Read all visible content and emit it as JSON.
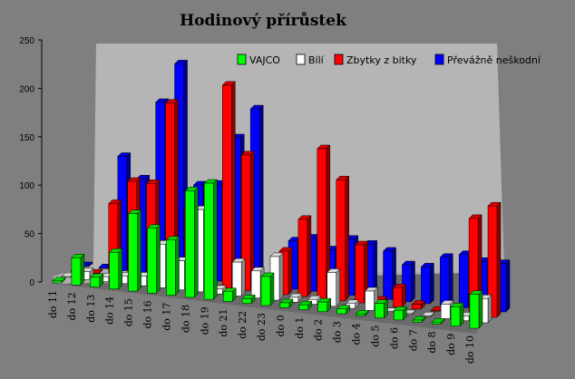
{
  "chart_data": {
    "type": "bar",
    "title": "Hodinový přírůstek",
    "xlabel": "",
    "ylabel": "",
    "ylim": [
      0,
      250
    ],
    "yticks": [
      0,
      50,
      100,
      150,
      200,
      250
    ],
    "grid": false,
    "legend": "top-right",
    "categories": [
      "do 11",
      "do 12",
      "do 13",
      "do 14",
      "do 15",
      "do 16",
      "do 17",
      "do 18",
      "do 19",
      "do 21",
      "do 22",
      "do 23",
      "do 0",
      "do 1",
      "do 2",
      "do 3",
      "do 4",
      "do 5",
      "do 6",
      "do 7",
      "do 8",
      "do 9",
      "do 10"
    ],
    "series": [
      {
        "name": "VAJCO",
        "color": "#00ff00",
        "values": [
          2,
          28,
          10,
          38,
          80,
          67,
          57,
          110,
          120,
          10,
          5,
          30,
          5,
          5,
          10,
          5,
          2,
          15,
          10,
          2,
          2,
          20,
          35
        ]
      },
      {
        "name": "Bílí",
        "color": "#ffffff",
        "values": [
          0,
          8,
          5,
          8,
          10,
          45,
          30,
          85,
          5,
          35,
          28,
          45,
          5,
          5,
          35,
          5,
          20,
          0,
          0,
          0,
          15,
          5,
          25
        ]
      },
      {
        "name": "Zbytky z bitky",
        "color": "#ff0000",
        "values": [
          0,
          0,
          75,
          100,
          100,
          185,
          80,
          0,
          210,
          140,
          15,
          45,
          80,
          155,
          125,
          60,
          5,
          20,
          5,
          0,
          5,
          100,
          115
        ]
      },
      {
        "name": "Převážně neškodní",
        "color": "#0000ff",
        "values": [
          0,
          0,
          118,
          97,
          178,
          220,
          97,
          100,
          150,
          182,
          0,
          50,
          55,
          45,
          58,
          55,
          50,
          38,
          38,
          50,
          55,
          50,
          50
        ]
      }
    ]
  }
}
